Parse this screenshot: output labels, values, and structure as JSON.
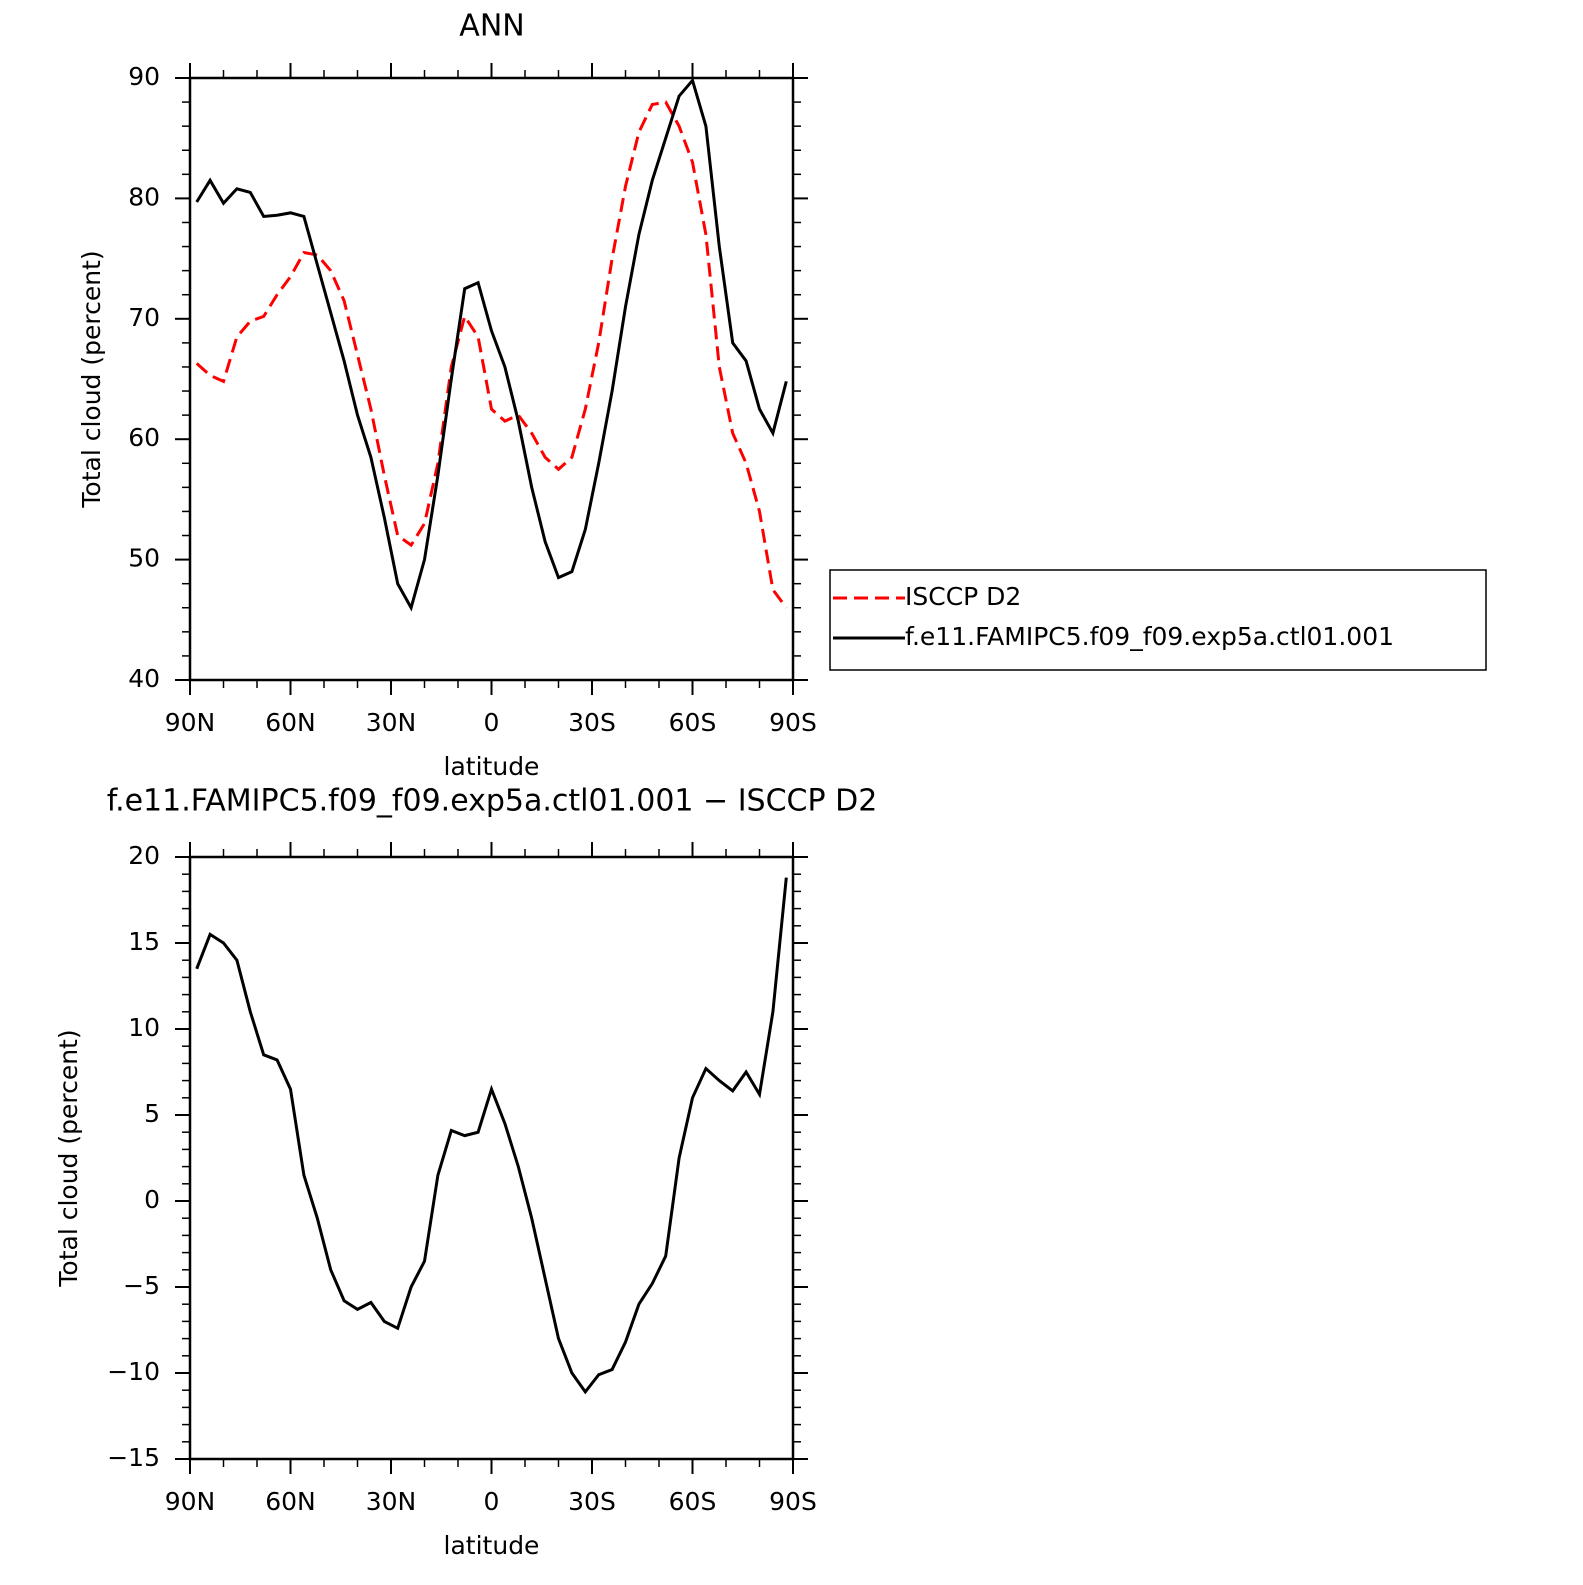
{
  "chart_data": [
    {
      "type": "line",
      "title": "ANN",
      "xlabel": "latitude",
      "ylabel": "Total cloud (percent)",
      "xlim": [
        90,
        -90
      ],
      "xticks": [
        {
          "value": 90,
          "label": "90N"
        },
        {
          "value": 60,
          "label": "60N"
        },
        {
          "value": 30,
          "label": "30N"
        },
        0,
        {
          "value": -30,
          "label": "30S"
        },
        {
          "value": -60,
          "label": "60S"
        },
        {
          "value": -90,
          "label": "90S"
        }
      ],
      "xminorticks": [
        80,
        70,
        50,
        40,
        20,
        10,
        -10,
        -20,
        -40,
        -50,
        -70,
        -80
      ],
      "ylim": [
        40,
        90
      ],
      "yticks": [
        40,
        50,
        60,
        70,
        80,
        90
      ],
      "yminorticks": [
        42,
        44,
        46,
        48,
        52,
        54,
        56,
        58,
        62,
        64,
        66,
        68,
        72,
        74,
        76,
        78,
        82,
        84,
        86,
        88
      ],
      "x": [
        88,
        84,
        80,
        76,
        72,
        68,
        64,
        60,
        56,
        52,
        48,
        44,
        40,
        36,
        32,
        28,
        24,
        20,
        16,
        12,
        8,
        4,
        0,
        -4,
        -8,
        -12,
        -16,
        -20,
        -24,
        -28,
        -32,
        -36,
        -40,
        -44,
        -48,
        -52,
        -56,
        -60,
        -64,
        -68,
        -72,
        -76,
        -80,
        -84,
        -88
      ],
      "series": [
        {
          "name": "ISCCP D2",
          "color": "#ff0000",
          "style": "dashed",
          "values": [
            66.3,
            65.3,
            64.8,
            68.5,
            69.8,
            70.2,
            72,
            73.5,
            75.5,
            75.3,
            74,
            71.5,
            67,
            62.5,
            57,
            52,
            51.2,
            53,
            58,
            66,
            70.2,
            68.5,
            62.5,
            61.5,
            62,
            60.5,
            58.5,
            57.5,
            58.5,
            62.5,
            68,
            75,
            81,
            85.5,
            87.8,
            88,
            86,
            83,
            77,
            66,
            60.5,
            58,
            54,
            47.5,
            46
          ]
        },
        {
          "name": "f.e11.FAMIPC5.f09_f09.exp5a.ctl01.001",
          "color": "#000000",
          "style": "solid",
          "values": [
            79.7,
            81.5,
            79.6,
            80.8,
            80.5,
            78.5,
            78.6,
            78.8,
            78.5,
            74.5,
            70.5,
            66.5,
            62,
            58.5,
            53.5,
            48,
            46,
            50,
            57,
            65,
            72.5,
            73,
            69,
            66,
            61.5,
            56,
            51.5,
            48.5,
            49,
            52.5,
            58,
            64,
            71,
            77,
            81.5,
            85,
            88.5,
            89.8,
            86,
            76,
            68,
            66.5,
            62.5,
            60.5,
            64.8
          ]
        }
      ]
    },
    {
      "type": "line",
      "title": "f.e11.FAMIPC5.f09_f09.exp5a.ctl01.001 − ISCCP D2",
      "xlabel": "latitude",
      "ylabel": "Total cloud (percent)",
      "xlim": [
        90,
        -90
      ],
      "xticks": [
        {
          "value": 90,
          "label": "90N"
        },
        {
          "value": 60,
          "label": "60N"
        },
        {
          "value": 30,
          "label": "30N"
        },
        0,
        {
          "value": -30,
          "label": "30S"
        },
        {
          "value": -60,
          "label": "60S"
        },
        {
          "value": -90,
          "label": "90S"
        }
      ],
      "xminorticks": [
        80,
        70,
        50,
        40,
        20,
        10,
        -10,
        -20,
        -40,
        -50,
        -70,
        -80
      ],
      "ylim": [
        -15,
        20
      ],
      "yticks": [
        {
          "value": -15,
          "label": "−15"
        },
        {
          "value": -10,
          "label": "−10"
        },
        {
          "value": -5,
          "label": "−5"
        },
        0,
        5,
        10,
        15,
        20
      ],
      "yminorticks": [
        -14,
        -13,
        -12,
        -11,
        -9,
        -8,
        -7,
        -6,
        -4,
        -3,
        -2,
        -1,
        1,
        2,
        3,
        4,
        6,
        7,
        8,
        9,
        11,
        12,
        13,
        14,
        16,
        17,
        18,
        19
      ],
      "x": [
        88,
        84,
        80,
        76,
        72,
        68,
        64,
        60,
        56,
        52,
        48,
        44,
        40,
        36,
        32,
        28,
        24,
        20,
        16,
        12,
        8,
        4,
        0,
        -4,
        -8,
        -12,
        -16,
        -20,
        -24,
        -28,
        -32,
        -36,
        -40,
        -44,
        -48,
        -52,
        -56,
        -60,
        -64,
        -68,
        -72,
        -76,
        -80,
        -84,
        -88
      ],
      "color": "#000000",
      "values": [
        13.5,
        15.5,
        15,
        14,
        11,
        8.5,
        8.2,
        6.5,
        1.5,
        -1,
        -4,
        -5.8,
        -6.3,
        -5.9,
        -7,
        -7.4,
        -5,
        -3.5,
        1.5,
        4.1,
        3.8,
        4,
        6.5,
        4.5,
        2,
        -1,
        -4.5,
        -8,
        -10,
        -11.1,
        -10.1,
        -9.8,
        -8.2,
        -6,
        -4.8,
        -3.2,
        2.5,
        6,
        7.7,
        7,
        6.4,
        7.5,
        6.2,
        11,
        18.8
      ]
    }
  ]
}
